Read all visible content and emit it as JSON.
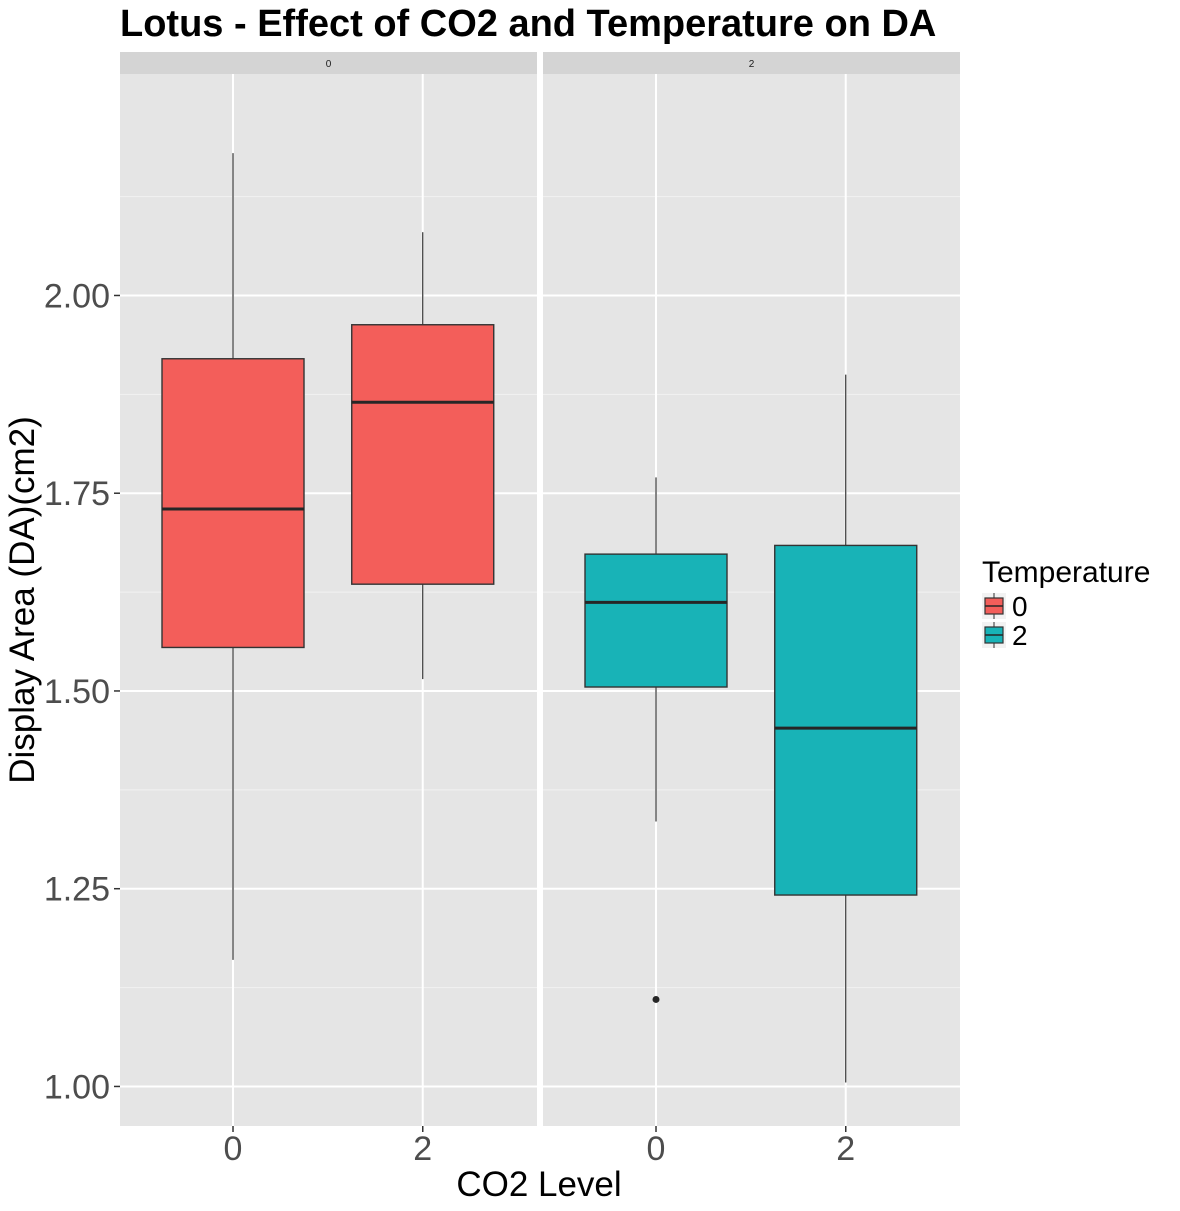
{
  "chart_data": {
    "type": "box",
    "title": "Lotus - Effect of CO2 and Temperature on DA",
    "xlabel": "CO2 Level",
    "ylabel": "Display Area (DA)(cm2)",
    "ylim": [
      0.95,
      2.28
    ],
    "yticks": [
      "1.00",
      "1.25",
      "1.50",
      "1.75",
      "2.00"
    ],
    "categories": [
      "0",
      "2"
    ],
    "legend": {
      "title": "Temperature",
      "position": "right",
      "entries": [
        {
          "label": "0",
          "color": "#F35E5A"
        },
        {
          "label": "2",
          "color": "#18B3B7"
        }
      ]
    },
    "grid": true,
    "panels": [
      {
        "strip_label": "0",
        "boxes": [
          {
            "x": "0",
            "min": 1.16,
            "q1": 1.555,
            "median": 1.73,
            "q3": 1.92,
            "max": 2.18,
            "outliers": [],
            "color": "#F35E5A"
          },
          {
            "x": "2",
            "min": 1.515,
            "q1": 1.635,
            "median": 1.865,
            "q3": 1.963,
            "max": 2.08,
            "outliers": [],
            "color": "#F35E5A"
          }
        ]
      },
      {
        "strip_label": "2",
        "boxes": [
          {
            "x": "0",
            "min": 1.335,
            "q1": 1.505,
            "median": 1.612,
            "q3": 1.673,
            "max": 1.77,
            "outliers": [
              1.11
            ],
            "color": "#18B3B7"
          },
          {
            "x": "2",
            "min": 1.005,
            "q1": 1.242,
            "median": 1.453,
            "q3": 1.684,
            "max": 1.9,
            "outliers": [],
            "color": "#18B3B7"
          }
        ]
      }
    ]
  }
}
